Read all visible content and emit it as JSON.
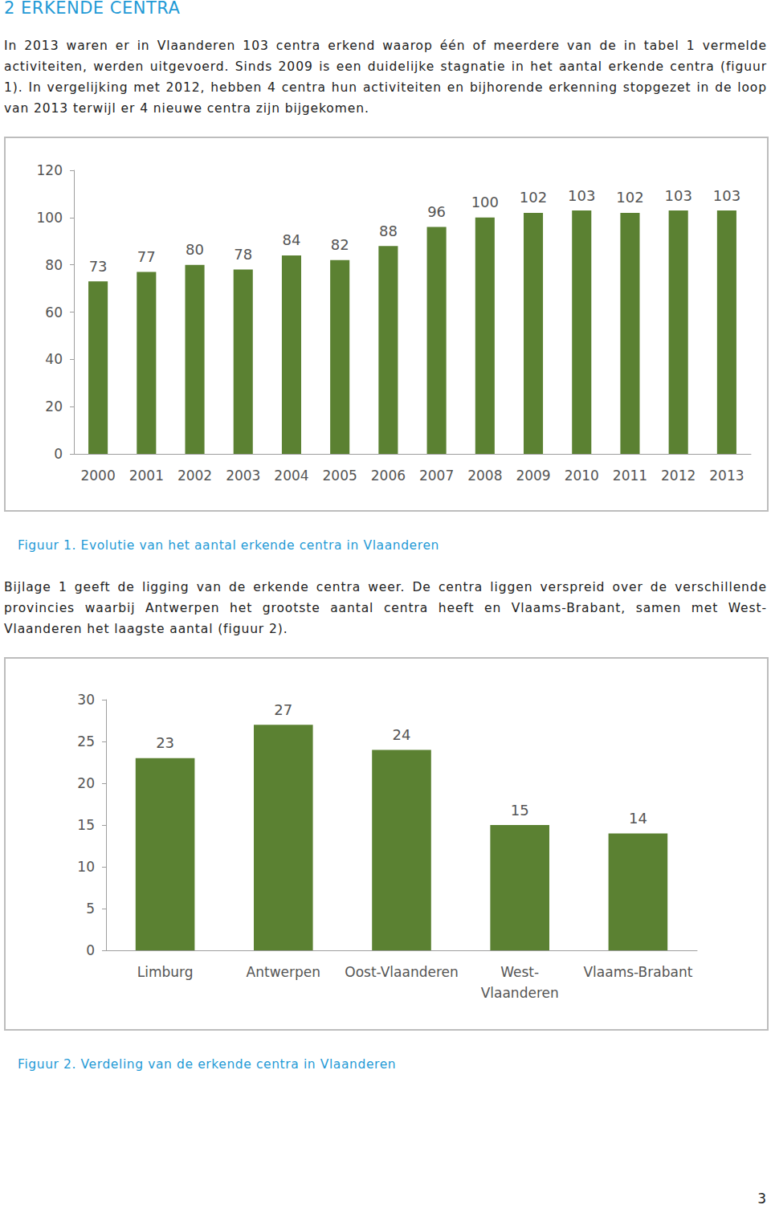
{
  "heading": "2 ERKENDE CENTRA",
  "paragraphs": [
    "In 2013 waren er in Vlaanderen 103 centra erkend waarop één of meerdere van de in tabel 1 vermelde activiteiten, werden uitgevoerd. Sinds 2009 is een duidelijke stagnatie in het aantal erkende centra (figuur 1). In vergelijking met 2012, hebben 4 centra hun activiteiten en bijhorende erkenning stopgezet in de loop van 2013 terwijl er 4 nieuwe centra zijn bijgekomen.",
    "Bijlage 1 geeft de ligging van de erkende centra weer. De centra liggen verspreid over de verschillende provincies waarbij Antwerpen het grootste aantal centra heeft en Vlaams-Brabant, samen met West-Vlaanderen het laagste aantal (figuur 2)."
  ],
  "chart_data": [
    {
      "type": "bar",
      "categories": [
        "2000",
        "2001",
        "2002",
        "2003",
        "2004",
        "2005",
        "2006",
        "2007",
        "2008",
        "2009",
        "2010",
        "2011",
        "2012",
        "2013"
      ],
      "values": [
        73,
        77,
        80,
        78,
        84,
        82,
        88,
        96,
        100,
        102,
        103,
        102,
        103,
        103
      ],
      "color": "#5b8132",
      "ylim": [
        0,
        120
      ],
      "yticks": [
        0,
        20,
        40,
        60,
        80,
        100,
        120
      ],
      "grid": false,
      "data_labels": true
    },
    {
      "type": "bar",
      "categories": [
        "Limburg",
        "Antwerpen",
        "Oost-Vlaanderen",
        "West-\nVlaanderen",
        "Vlaams-Brabant"
      ],
      "values": [
        23,
        27,
        24,
        15,
        14
      ],
      "color": "#5b8132",
      "ylim": [
        0,
        30
      ],
      "yticks": [
        0,
        5,
        10,
        15,
        20,
        25,
        30
      ],
      "grid": false,
      "data_labels": true
    }
  ],
  "captions": [
    "Figuur 1. Evolutie van het aantal erkende centra in Vlaanderen",
    "Figuur 2. Verdeling van de erkende centra in Vlaanderen"
  ],
  "page_number": "3"
}
